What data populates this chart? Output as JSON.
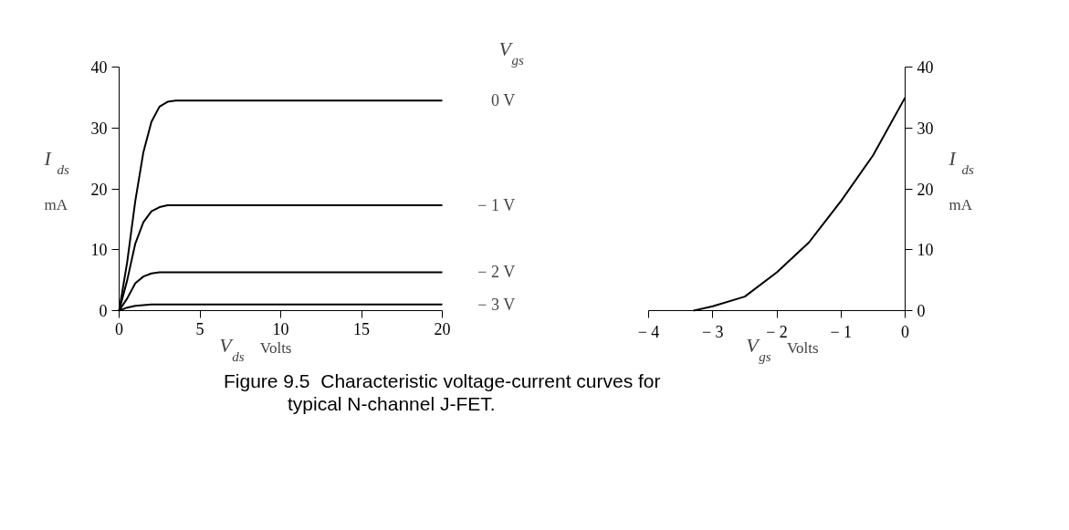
{
  "chart_data": [
    {
      "type": "line",
      "xlabel": "V$_{ds}$ Volts",
      "ylabel": "I$_{ds}$ mA",
      "legend_title": "V$_{gs}$",
      "xlim": [
        0,
        20
      ],
      "ylim": [
        0,
        40
      ],
      "xticks": [
        0,
        5,
        10,
        15,
        20
      ],
      "yticks": [
        0,
        10,
        20,
        30,
        40
      ],
      "grid": false,
      "annotations": [
        "Figure 9.5  Characteristic voltage-current curves for\n            typical N-channel J-FET."
      ],
      "series": [
        {
          "name": "0 V",
          "color": "#000000",
          "x": [
            0,
            0.5,
            1,
            1.5,
            2,
            2.5,
            3,
            3.5,
            4,
            20
          ],
          "values": [
            0,
            8,
            18,
            26,
            31,
            33.5,
            34.3,
            34.5,
            34.5,
            34.5
          ]
        },
        {
          "name": "− 1 V",
          "color": "#000000",
          "x": [
            0,
            0.5,
            1,
            1.5,
            2,
            2.5,
            3,
            3.5,
            20
          ],
          "values": [
            0,
            5,
            11,
            14.5,
            16.3,
            17,
            17.3,
            17.3,
            17.3
          ]
        },
        {
          "name": "− 2 V",
          "color": "#000000",
          "x": [
            0,
            0.5,
            1,
            1.5,
            2,
            2.5,
            3,
            20
          ],
          "values": [
            0,
            2,
            4.5,
            5.6,
            6.1,
            6.3,
            6.3,
            6.3
          ]
        },
        {
          "name": "− 3 V",
          "color": "#000000",
          "x": [
            0,
            0.5,
            1,
            1.5,
            2,
            20
          ],
          "values": [
            0,
            0.5,
            0.8,
            0.9,
            1,
            1
          ]
        }
      ]
    },
    {
      "type": "line",
      "xlabel": "V$_{gs}$ Volts",
      "ylabel": "I$_{ds}$ mA",
      "xlim": [
        -4,
        0
      ],
      "ylim": [
        0,
        40
      ],
      "xticks": [
        {
          "value": -4,
          "label": "− 4"
        },
        {
          "value": -3,
          "label": "− 3"
        },
        {
          "value": -2,
          "label": "− 2"
        },
        {
          "value": -1,
          "label": "− 1"
        },
        0
      ],
      "yticks": [
        0,
        10,
        20,
        30,
        40
      ],
      "grid": false,
      "series": [
        {
          "color": "#000000",
          "x": [
            -3.3,
            -3,
            -2.5,
            -2,
            -1.5,
            -1,
            -0.5,
            0
          ],
          "values": [
            0,
            0.7,
            2.3,
            6.3,
            11.2,
            18,
            25.5,
            35
          ]
        }
      ]
    }
  ]
}
